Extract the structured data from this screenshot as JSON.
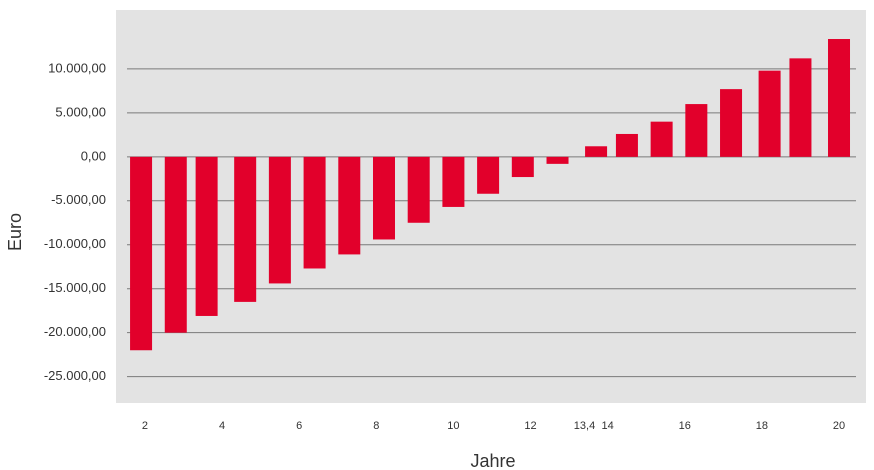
{
  "chart_data": {
    "type": "bar",
    "x_label": "Jahre",
    "y_label": "Euro",
    "x": [
      1.9,
      2.8,
      3.6,
      4.6,
      5.5,
      6.4,
      7.3,
      8.2,
      9.1,
      10.0,
      10.9,
      11.8,
      12.7,
      13.7,
      14.5,
      15.4,
      16.3,
      17.2,
      18.2,
      19.0,
      20.0
    ],
    "values": [
      -22000,
      -20000,
      -18100,
      -16500,
      -14400,
      -12700,
      -11100,
      -9400,
      -7500,
      -5700,
      -4200,
      -2300,
      -800,
      1200,
      2600,
      4000,
      6000,
      7700,
      9800,
      11200,
      13400
    ],
    "color": "#e2002b",
    "xlim": [
      1.25,
      20.7
    ],
    "xticks": [
      2,
      4,
      6,
      8,
      10,
      12,
      {
        "value": 13.4,
        "label": "13,4"
      },
      14,
      16,
      18,
      20
    ],
    "ylim": [
      -28000,
      16700
    ],
    "yticks": [
      {
        "value": -25000,
        "label": "-25.000,00"
      },
      {
        "value": -20000,
        "label": "-20.000,00"
      },
      {
        "value": -15000,
        "label": "-15.000,00"
      },
      {
        "value": -10000,
        "label": "-10.000,00"
      },
      {
        "value": -5000,
        "label": "-5.000,00"
      },
      {
        "value": 0,
        "label": "0,00"
      },
      {
        "value": 5000,
        "label": "5.000,00"
      },
      {
        "value": 10000,
        "label": "10.000,00"
      }
    ],
    "grid": true
  }
}
